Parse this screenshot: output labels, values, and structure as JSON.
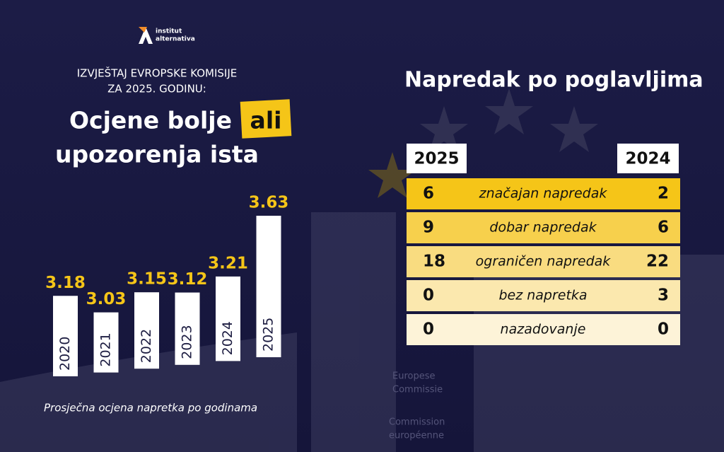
{
  "logo": {
    "line1": "institut",
    "line2": "alternativa"
  },
  "header": {
    "kicker1": "IZVJEŠTAJ EVROPSKE KOMISIJE",
    "kicker2": "ZA 2025. GODINU:",
    "title1": "Ocjene bolje",
    "highlight": "ali",
    "title2": "upozorenja ista"
  },
  "chart_data": {
    "type": "bar",
    "categories": [
      "2020",
      "2021",
      "2022",
      "2023",
      "2024",
      "2025"
    ],
    "values": [
      3.18,
      3.03,
      3.15,
      3.12,
      3.21,
      3.63
    ],
    "color": "#ffffff",
    "label_color": "#f5c518",
    "caption": "Prosječna ocjena napretka po godinama"
  },
  "table": {
    "title": "Napredak po poglavljima",
    "header": [
      "2025",
      "2024"
    ],
    "rows": [
      [
        "6",
        "značajan napredak",
        "2"
      ],
      [
        "9",
        "dobar napredak",
        "6"
      ],
      [
        "18",
        "ograničen napredak",
        "22"
      ],
      [
        "0",
        "bez napretka",
        "3"
      ],
      [
        "0",
        "nazadovanje",
        "0"
      ]
    ]
  },
  "background": {
    "sign1": "Europese",
    "sign2": "Commissie",
    "sign3": "Commission",
    "sign4": "européenne"
  }
}
